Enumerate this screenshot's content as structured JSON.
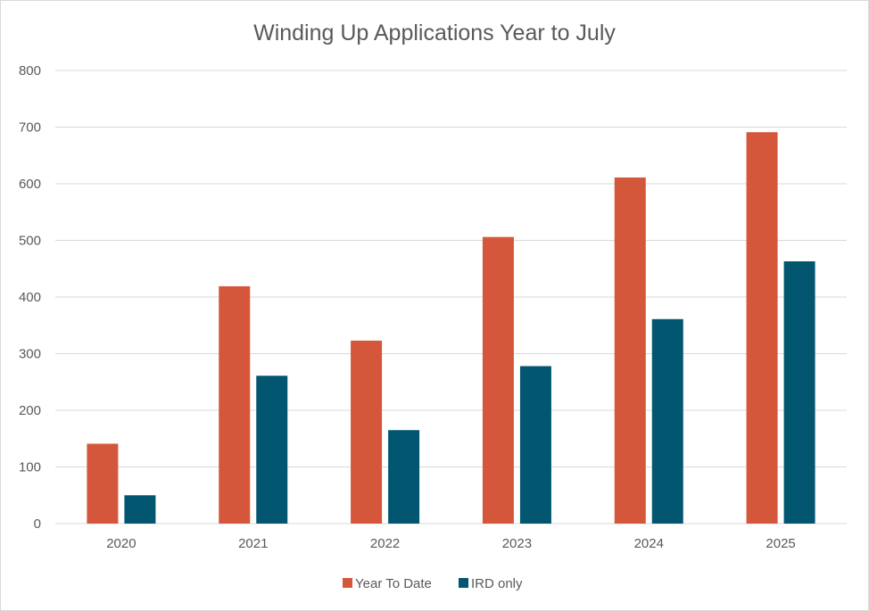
{
  "chart_data": {
    "type": "bar",
    "title": "Winding Up Applications Year to July",
    "xlabel": "",
    "ylabel": "",
    "categories": [
      "2020",
      "2021",
      "2022",
      "2023",
      "2024",
      "2025"
    ],
    "series": [
      {
        "name": "Year To Date",
        "values": [
          141,
          419,
          323,
          506,
          611,
          691
        ],
        "color": "#d4573b"
      },
      {
        "name": "IRD only",
        "values": [
          50,
          261,
          165,
          278,
          361,
          463
        ],
        "color": "#025670"
      }
    ],
    "ylim": [
      0,
      800
    ],
    "yticks": [
      "0",
      "100",
      "200",
      "300",
      "400",
      "500",
      "600",
      "700",
      "800"
    ],
    "grid": true,
    "legend": "bottom"
  },
  "colors": {
    "gridline": "#d9d9d9",
    "axis_text": "#595959",
    "border": "#d9d9d9"
  }
}
